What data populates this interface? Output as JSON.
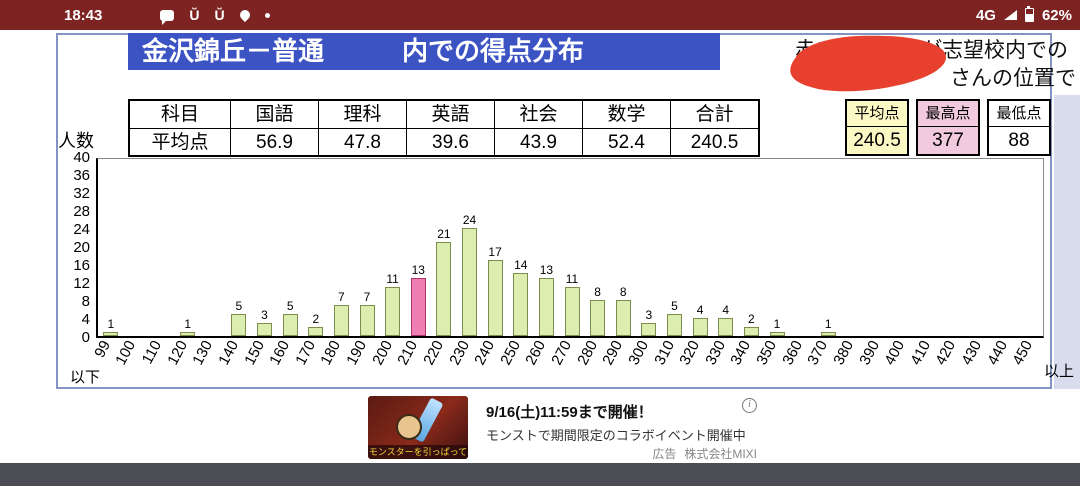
{
  "status_bar": {
    "time": "18:43",
    "network": "4G",
    "battery": "62%"
  },
  "header": {
    "title": "金沢錦丘－普通　　　内での得点分布",
    "note_line1": "赤い棒グラフが志望校内での",
    "note_line2": "さんの位置で"
  },
  "score_table": {
    "headers": [
      "科目",
      "国語",
      "理科",
      "英語",
      "社会",
      "数学",
      "合計"
    ],
    "row": [
      "平均点",
      "56.9",
      "47.8",
      "39.6",
      "43.9",
      "52.4",
      "240.5"
    ]
  },
  "summary_boxes": [
    {
      "label": "平均点",
      "value": "240.5",
      "bg": "#fdf9c4"
    },
    {
      "label": "最高点",
      "value": "377",
      "bg": "#f2cade"
    },
    {
      "label": "最低点",
      "value": "88",
      "bg": "#ffffff"
    }
  ],
  "chart_data": {
    "type": "bar",
    "title": "",
    "ylabel": "人数",
    "xlabel": "",
    "ylim": [
      0,
      40
    ],
    "yticks": [
      0,
      4,
      8,
      12,
      16,
      20,
      24,
      28,
      32,
      36,
      40
    ],
    "grid": false,
    "legend": "none",
    "categories": [
      "99",
      "100",
      "110",
      "120",
      "130",
      "140",
      "150",
      "160",
      "170",
      "180",
      "190",
      "200",
      "210",
      "220",
      "230",
      "240",
      "250",
      "260",
      "270",
      "280",
      "290",
      "300",
      "310",
      "320",
      "330",
      "340",
      "350",
      "360",
      "370",
      "380",
      "390",
      "400",
      "410",
      "420",
      "430",
      "440",
      "450"
    ],
    "values": [
      1,
      0,
      0,
      1,
      0,
      5,
      3,
      5,
      2,
      7,
      7,
      11,
      13,
      21,
      24,
      17,
      14,
      13,
      11,
      8,
      8,
      3,
      5,
      4,
      4,
      2,
      1,
      0,
      1,
      0,
      0,
      0,
      0,
      0,
      0,
      0,
      0
    ],
    "first_suffix": "以下",
    "last_suffix": "以上",
    "highlight_index": 12,
    "bar_color": "#dcedb0",
    "bar_border": "#7d8d4a",
    "highlight_color": "#ef7fb2",
    "highlight_border": "#a8346a"
  },
  "ad": {
    "line1": "9/16(土)11:59まで開催！",
    "line2": "モンストで期間限定のコラボイベント開催中",
    "label": "広告",
    "advertiser": "株式会社MIXI",
    "image_caption": "モンスターを引っぱって"
  },
  "colors": {
    "status_bar": "#7d2322",
    "title_bar": "#3c53c4",
    "scribble": "#e8402e",
    "panel_border": "#8492c4",
    "background_strip": "#d9dcec"
  }
}
